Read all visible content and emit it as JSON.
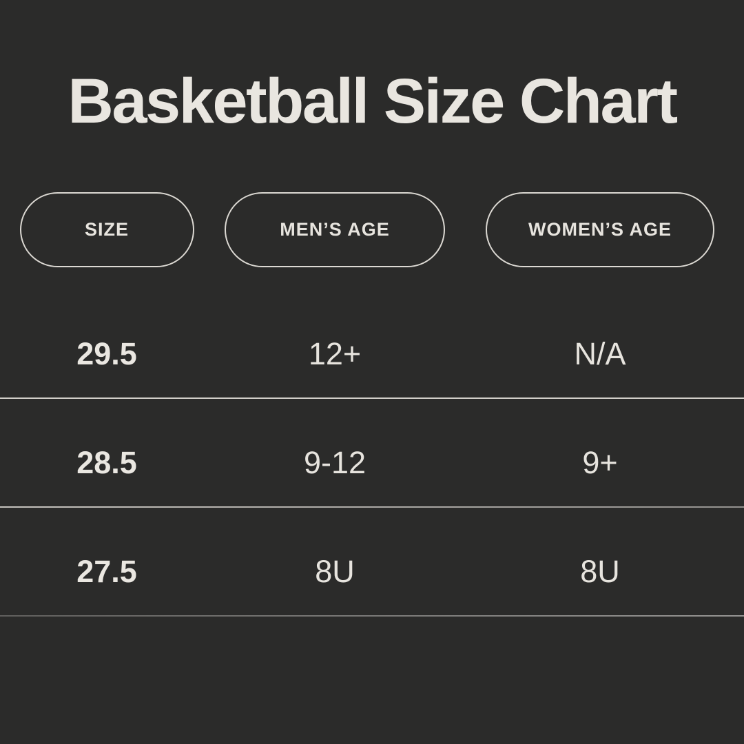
{
  "theme": {
    "background": "#2b2b2a",
    "title_color": "#e9e6e0",
    "text_color": "#e7e4de",
    "pill_border_color": "#dcd9d3",
    "divider_colors": [
      "#d2cfc9",
      "#a9a6a2",
      "#7f7e7c"
    ]
  },
  "title": "Basketball Size Chart",
  "chart_data": {
    "type": "table",
    "title": "Basketball Size Chart",
    "columns": [
      "SIZE",
      "MEN’S AGE",
      "WOMEN’S AGE"
    ],
    "rows": [
      [
        "29.5",
        "12+",
        "N/A"
      ],
      [
        "28.5",
        "9-12",
        "9+"
      ],
      [
        "27.5",
        "8U",
        "8U"
      ]
    ],
    "layout_hints": {
      "header_style": "outlined-pill",
      "row_dividers": true,
      "column_alignment": [
        "center",
        "center",
        "center"
      ]
    }
  }
}
